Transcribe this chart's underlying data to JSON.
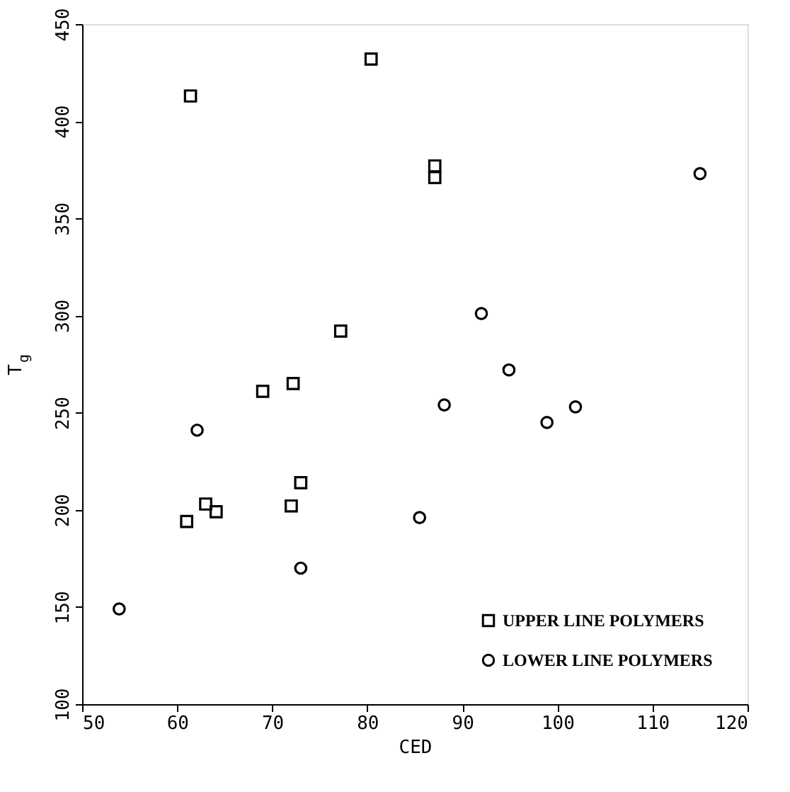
{
  "chart_data": {
    "type": "scatter",
    "xlabel": "CED",
    "ylabel": "T$_{g}$",
    "xlim": [
      50,
      120
    ],
    "xticks": [
      50,
      60,
      70,
      80,
      90,
      100,
      110,
      120
    ],
    "ylim": [
      100,
      450
    ],
    "yticks": [
      100,
      150,
      200,
      250,
      300,
      350,
      400,
      450
    ],
    "grid": false,
    "legend": "bottom right",
    "series": [
      {
        "name": "UPPER LINE POLYMERS",
        "color": "#000000",
        "marker": "square",
        "x": [
          61.4,
          80.4,
          77.2,
          87.1,
          87.1,
          69.0,
          72.2,
          73.0,
          63.0,
          64.1,
          61.0,
          72.0
        ],
        "values": [
          413,
          432,
          292,
          377,
          371,
          261,
          265,
          214,
          203,
          199,
          194,
          202
        ]
      },
      {
        "name": "LOWER LINE POLYMERS",
        "color": "#000000",
        "marker": "circle",
        "x": [
          115.0,
          92.0,
          94.9,
          88.1,
          98.9,
          101.9,
          85.5,
          62.1,
          73.0,
          53.9
        ],
        "values": [
          373,
          301,
          272,
          254,
          245,
          253,
          196,
          241,
          170,
          149
        ]
      }
    ]
  }
}
